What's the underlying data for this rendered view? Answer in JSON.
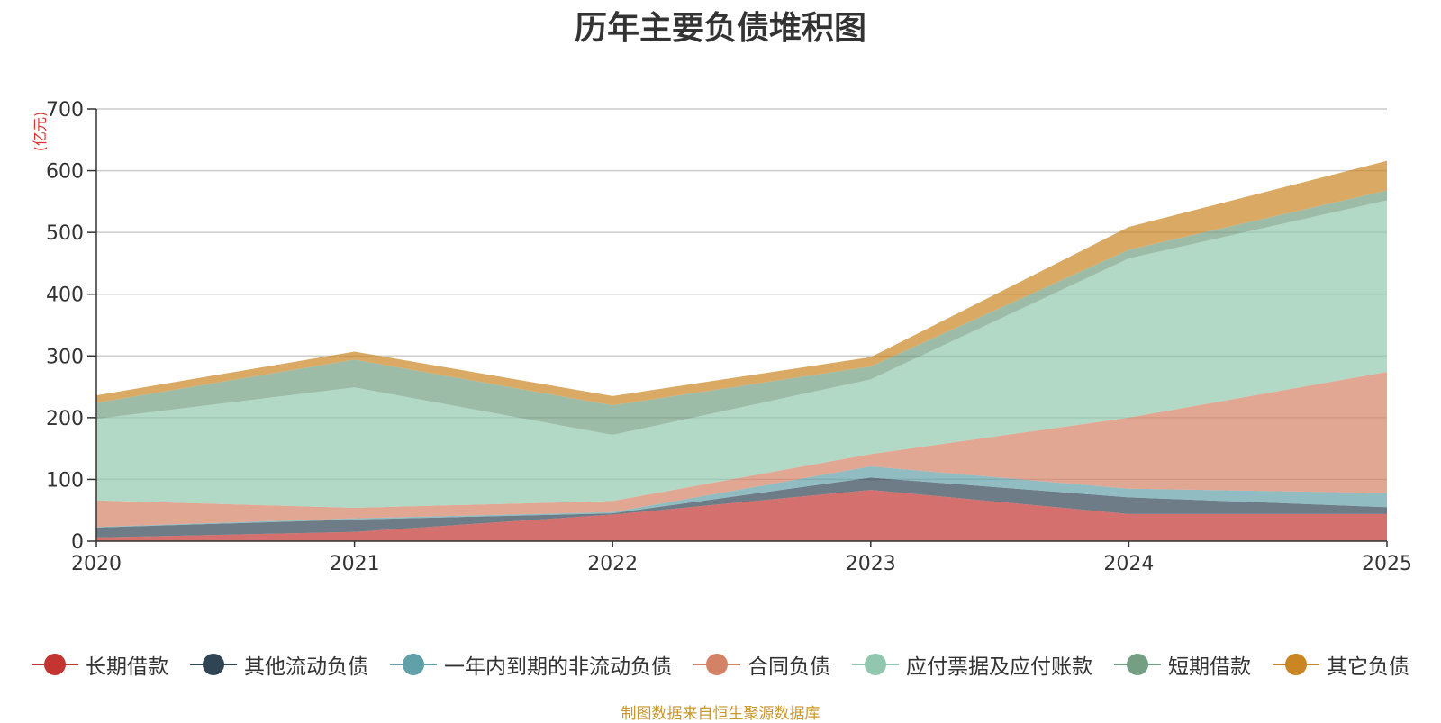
{
  "chart_data": {
    "type": "area",
    "stacked": true,
    "title": "历年主要负债堆积图",
    "unit": "(亿元)",
    "x": [
      "2020",
      "2021",
      "2022",
      "2023",
      "2024",
      "2025"
    ],
    "ylim": [
      0,
      700
    ],
    "yticks": [
      0,
      100,
      200,
      300,
      400,
      500,
      600,
      700
    ],
    "grid": true,
    "legend_position": "bottom",
    "series": [
      {
        "name": "长期借款",
        "color": "#c23531",
        "values": [
          6,
          15,
          43,
          83,
          44,
          44
        ]
      },
      {
        "name": "其他流动负债",
        "color": "#2f4554",
        "values": [
          16,
          20,
          2,
          20,
          27,
          11
        ]
      },
      {
        "name": "一年内到期的非流动负债",
        "color": "#61a0a8",
        "values": [
          1,
          2,
          2,
          18,
          14,
          23
        ]
      },
      {
        "name": "合同负债",
        "color": "#d48265",
        "values": [
          43,
          17,
          18,
          20,
          115,
          196
        ]
      },
      {
        "name": "应付票据及应付账款",
        "color": "#91c7ae",
        "values": [
          132,
          195,
          107,
          121,
          258,
          278
        ]
      },
      {
        "name": "短期借款",
        "color": "#749f83",
        "values": [
          26,
          45,
          48,
          21,
          14,
          16
        ]
      },
      {
        "name": "其它负债",
        "color": "#ca8622",
        "values": [
          12,
          13,
          15,
          15,
          37,
          48
        ]
      }
    ]
  },
  "footer": {
    "source": "制图数据来自恒生聚源数据库"
  }
}
